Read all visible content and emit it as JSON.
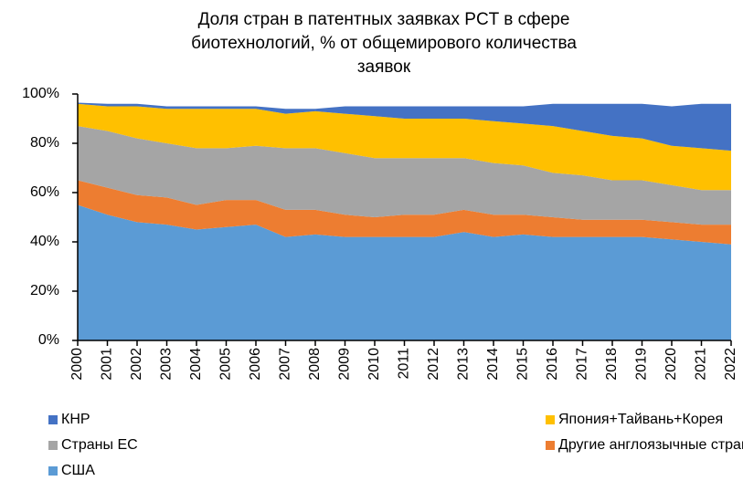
{
  "chart_data": {
    "type": "stacked_area",
    "title": [
      "Доля стран в патентных заявках PCT в сфере",
      "биотехнологий, % от общемирового количества",
      "заявок"
    ],
    "categories": [
      "2000",
      "2001",
      "2002",
      "2003",
      "2004",
      "2005",
      "2006",
      "2007",
      "2008",
      "2009",
      "2010",
      "2011",
      "2012",
      "2013",
      "2014",
      "2015",
      "2016",
      "2017",
      "2018",
      "2019",
      "2020",
      "2021",
      "2022"
    ],
    "series": [
      {
        "name": "США",
        "color": "#5b9bd5",
        "values": [
          55,
          51,
          48,
          47,
          45,
          46,
          47,
          42,
          43,
          42,
          42,
          42,
          42,
          44,
          42,
          43,
          42,
          42,
          42,
          42,
          41,
          40,
          39
        ]
      },
      {
        "name": "Другие англоязычные страны",
        "color": "#ed7d31",
        "values": [
          10,
          11,
          11,
          11,
          10,
          11,
          10,
          11,
          10,
          9,
          8,
          9,
          9,
          9,
          9,
          8,
          8,
          7,
          7,
          7,
          7,
          7,
          8
        ]
      },
      {
        "name": "Страны ЕС",
        "color": "#a5a5a5",
        "values": [
          22,
          23,
          23,
          22,
          23,
          21,
          22,
          25,
          25,
          25,
          24,
          23,
          23,
          21,
          21,
          20,
          18,
          18,
          16,
          16,
          15,
          14,
          14
        ]
      },
      {
        "name": "Япония+Тайвань+Корея",
        "color": "#ffc000",
        "values": [
          9,
          10,
          13,
          14,
          16,
          16,
          15,
          14,
          15,
          16,
          17,
          16,
          16,
          16,
          17,
          17,
          19,
          18,
          18,
          17,
          16,
          17,
          16
        ]
      },
      {
        "name": "КНР",
        "color": "#4472c4",
        "values": [
          0.5,
          1,
          1,
          1,
          1,
          1,
          1,
          2,
          1,
          3,
          4,
          5,
          5,
          5,
          6,
          7,
          9,
          11,
          13,
          14,
          16,
          18,
          19
        ]
      }
    ],
    "ylim": [
      0,
      100
    ],
    "yticks": [
      {
        "value": 0,
        "label": "0%"
      },
      {
        "value": 20,
        "label": "20%"
      },
      {
        "value": 40,
        "label": "40%"
      },
      {
        "value": 60,
        "label": "60%"
      },
      {
        "value": 80,
        "label": "80%"
      },
      {
        "value": 100,
        "label": "100%"
      }
    ]
  }
}
